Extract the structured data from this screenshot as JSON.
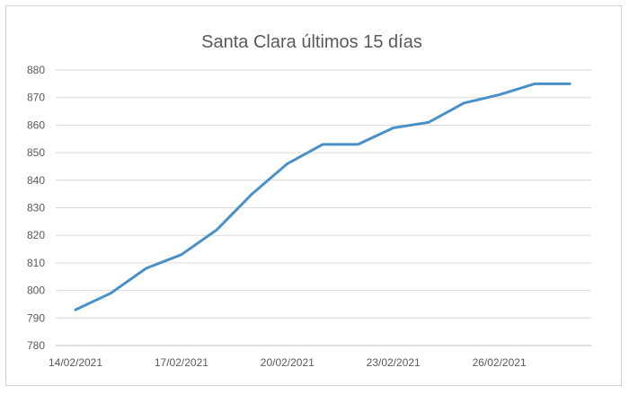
{
  "chart_data": {
    "type": "line",
    "title": "Santa Clara últimos 15 días",
    "xlabel": "",
    "ylabel": "",
    "ylim": [
      780,
      880
    ],
    "yticks": [
      780,
      790,
      800,
      810,
      820,
      830,
      840,
      850,
      860,
      870,
      880
    ],
    "grid": true,
    "legend": "none",
    "x": [
      "14/02/2021",
      "15/02/2021",
      "16/02/2021",
      "17/02/2021",
      "18/02/2021",
      "19/02/2021",
      "20/02/2021",
      "21/02/2021",
      "22/02/2021",
      "23/02/2021",
      "24/02/2021",
      "25/02/2021",
      "26/02/2021",
      "27/02/2021",
      "28/02/2021"
    ],
    "xtick_labels": [
      "14/02/2021",
      "17/02/2021",
      "20/02/2021",
      "23/02/2021",
      "26/02/2021"
    ],
    "series": [
      {
        "color": "#4a90c8",
        "values": [
          793,
          799,
          808,
          813,
          822,
          835,
          846,
          853,
          853,
          859,
          861,
          868,
          871,
          875,
          875
        ]
      }
    ]
  }
}
